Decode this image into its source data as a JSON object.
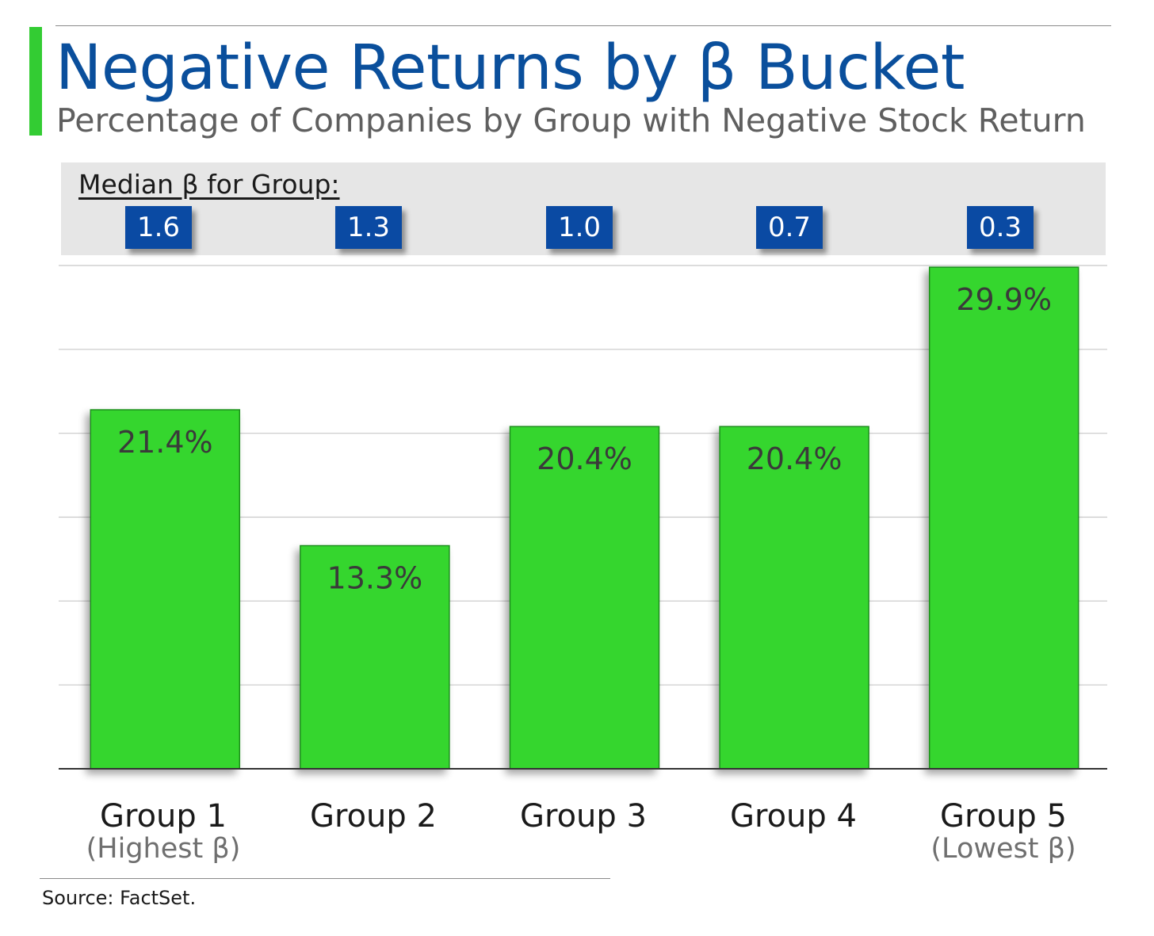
{
  "colors": {
    "accent": "#33cc33",
    "title": "#0a4f9c",
    "badge": "#0a4aa3",
    "bar": "#35d62d",
    "bar_border": "#1f8f1f",
    "grid": "#c8c8c8",
    "axis": "#333333",
    "bar_label": "#3a3a3a"
  },
  "header": {
    "title": "Negative Returns by β Bucket",
    "subtitle": "Percentage of Companies by Group with Negative Stock Return"
  },
  "beta_panel": {
    "label": "Median β for Group:",
    "values": [
      "1.6",
      "1.3",
      "1.0",
      "0.7",
      "0.3"
    ]
  },
  "chart_data": {
    "type": "bar",
    "title": "Negative Returns by β Bucket",
    "subtitle": "Percentage of Companies by Group with Negative Stock Return",
    "categories": [
      "Group 1",
      "Group 2",
      "Group 3",
      "Group 4",
      "Group 5"
    ],
    "category_sublabels": [
      "(Highest β)",
      "",
      "",
      "",
      "(Lowest β)"
    ],
    "values": [
      21.4,
      13.3,
      20.4,
      20.4,
      29.9
    ],
    "data_labels": [
      "21.4%",
      "13.3%",
      "20.4%",
      "20.4%",
      "29.9%"
    ],
    "unit": "%",
    "ylim": [
      0,
      30
    ],
    "gridlines": [
      0,
      5,
      10,
      15,
      20,
      25,
      30
    ],
    "grid": true,
    "legend": "none",
    "xlabel": "",
    "ylabel": ""
  },
  "footer": {
    "source": "Source: FactSet."
  }
}
